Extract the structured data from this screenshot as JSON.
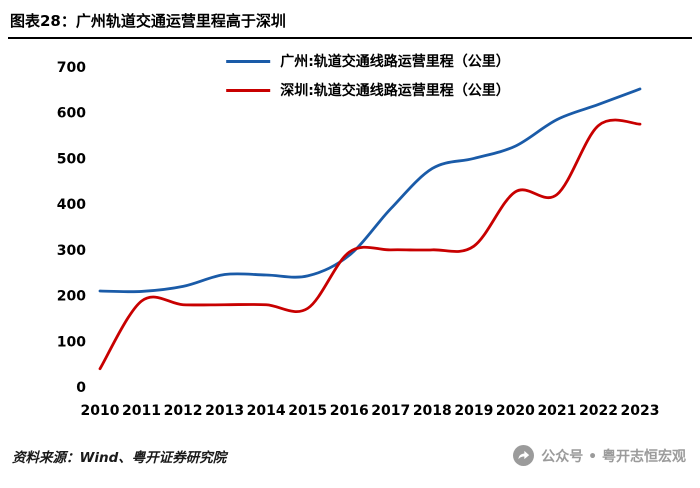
{
  "title": "图表28：广州轨道交通运营里程高于深圳",
  "footer": {
    "source": "资料来源：Wind、粤开证券研究院",
    "wechat_label": "公众号 • 粤开志恒宏观",
    "share_icon": "share-arrow-in-gray-circle",
    "icon_color": "#9b9b9b"
  },
  "chart_data": {
    "type": "line",
    "title": "",
    "xlabel": "",
    "ylabel": "",
    "x": [
      "2010",
      "2011",
      "2012",
      "2013",
      "2014",
      "2015",
      "2016",
      "2017",
      "2018",
      "2019",
      "2020",
      "2021",
      "2022",
      "2023"
    ],
    "series": [
      {
        "id": "guangzhou",
        "name": "广州:轨道交通线路运营里程（公里）",
        "color": "#1A5BA8",
        "values": [
          210,
          209,
          220,
          246,
          245,
          243,
          288,
          390,
          478,
          500,
          527,
          585,
          618,
          652
        ]
      },
      {
        "id": "shenzhen",
        "name": "深圳:轨道交通线路运营里程（公里）",
        "color": "#C80000",
        "values": [
          40,
          188,
          180,
          180,
          180,
          172,
          295,
          300,
          300,
          308,
          427,
          421,
          572,
          575
        ]
      }
    ],
    "ylim": [
      0,
      700
    ],
    "ytick_step": 100,
    "grid": false,
    "legend_position": "top-center"
  }
}
